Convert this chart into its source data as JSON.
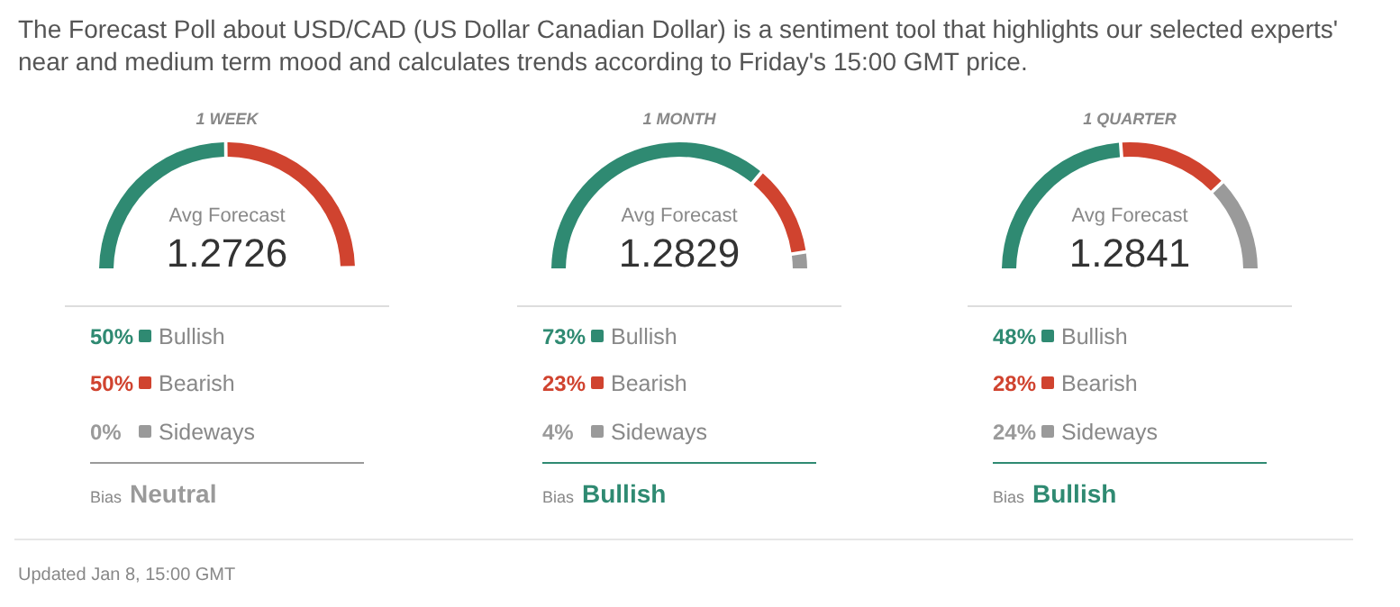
{
  "chart_data": [
    {
      "type": "donut",
      "title": "1 WEEK",
      "categories": [
        "Bullish",
        "Bearish",
        "Sideways"
      ],
      "values": [
        50,
        50,
        0
      ],
      "colors": [
        "#2f8a72",
        "#d0432f",
        "#9a9a9a"
      ],
      "value_labels": [
        "50%",
        "50%",
        "0%"
      ],
      "legend": "bottom",
      "annotations": [
        "The Forecast Poll about USD/CAD (US Dollar Canadian Dollar) is a sentiment tool that highlights our selected experts' near and medium term mood and calculates trends according to Friday's 15:00 GMT price.",
        "Avg Forecast",
        "1.2726",
        "Bias",
        "Neutral"
      ]
    },
    {
      "type": "donut",
      "title": "1 MONTH",
      "categories": [
        "Bullish",
        "Bearish",
        "Sideways"
      ],
      "values": [
        73,
        23,
        4
      ],
      "colors": [
        "#2f8a72",
        "#d0432f",
        "#9a9a9a"
      ],
      "value_labels": [
        "73%",
        "23%",
        "4%"
      ],
      "legend": "bottom",
      "annotations": [
        "Avg Forecast",
        "1.2829",
        "Bias",
        "Bullish"
      ]
    },
    {
      "type": "donut",
      "title": "1 QUARTER",
      "categories": [
        "Bullish",
        "Bearish",
        "Sideways"
      ],
      "values": [
        48,
        28,
        24
      ],
      "colors": [
        "#2f8a72",
        "#d0432f",
        "#9a9a9a"
      ],
      "value_labels": [
        "48%",
        "28%",
        "24%"
      ],
      "legend": "bottom",
      "annotations": [
        "Avg Forecast",
        "1.2841",
        "Bias",
        "Bullish",
        "Updated Jan 8, 15:00 GMT"
      ]
    }
  ]
}
